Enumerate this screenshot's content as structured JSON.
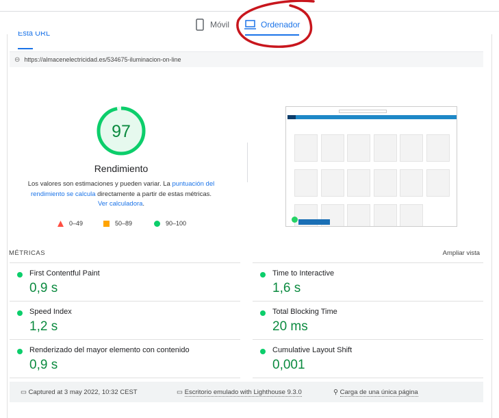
{
  "tabs": [
    {
      "label": "Móvil",
      "icon": "phone-icon",
      "active": false
    },
    {
      "label": "Ordenador",
      "icon": "laptop-icon",
      "active": true
    }
  ],
  "subtab": {
    "label": "Esta URL"
  },
  "url": "https://almacenelectricidad.es/534675-iluminacion-on-line",
  "score": {
    "value": "97",
    "fraction": 0.97,
    "label": "Rendimiento",
    "color": "#0cce6b"
  },
  "description": {
    "pre": "Los valores son estimaciones y pueden variar. La ",
    "link1": "puntuación del rendimiento se calcula",
    "mid": " directamente a partir de estas métricas. ",
    "link2": "Ver calculadora",
    "post": "."
  },
  "legend": [
    {
      "shape": "triangle",
      "color": "#ff4e42",
      "label": "0–49"
    },
    {
      "shape": "square",
      "color": "#ffa400",
      "label": "50–89"
    },
    {
      "shape": "circle",
      "color": "#0cce6b",
      "label": "90–100"
    }
  ],
  "metrics_header": {
    "title": "MÉTRICAS",
    "expand": "Ampliar vista"
  },
  "metrics": [
    {
      "label": "First Contentful Paint",
      "value": "0,9 s"
    },
    {
      "label": "Time to Interactive",
      "value": "1,6 s"
    },
    {
      "label": "Speed Index",
      "value": "1,2 s"
    },
    {
      "label": "Total Blocking Time",
      "value": "20 ms"
    },
    {
      "label": "Renderizado del mayor elemento con contenido",
      "value": "0,9 s"
    },
    {
      "label": "Cumulative Layout Shift",
      "value": "0,001"
    }
  ],
  "footer": {
    "captured": "Captured at 3 may 2022, 10:32 CEST",
    "device": "Escritorio emulado with Lighthouse 9.3.0",
    "load": "Carga de una única página"
  },
  "annotation_color": "#c8161d"
}
